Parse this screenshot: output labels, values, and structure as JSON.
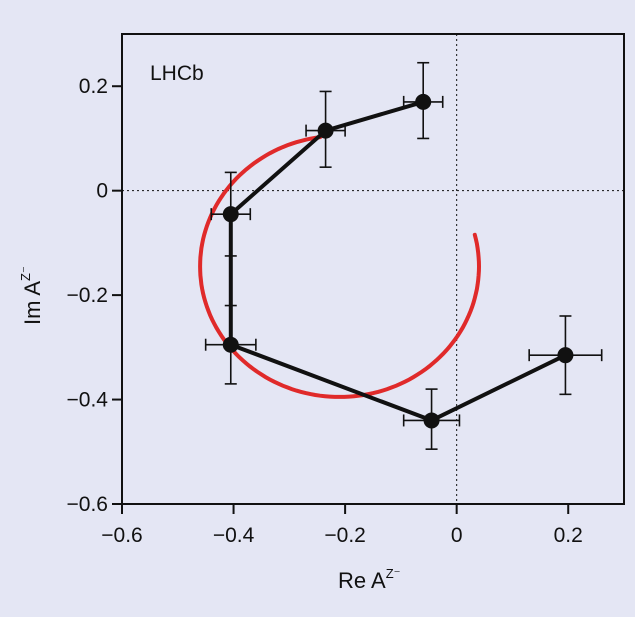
{
  "chart_data": {
    "type": "scatter",
    "annotation": "LHCb",
    "xlabel": {
      "base": "Re A",
      "superscript": "Z⁻"
    },
    "ylabel": {
      "base": "Im A",
      "superscript": "Z⁻"
    },
    "xlim": [
      -0.6,
      0.3
    ],
    "ylim": [
      -0.6,
      0.3
    ],
    "x_ticks": [
      -0.6,
      -0.4,
      -0.2,
      0,
      0.2
    ],
    "x_tick_labels": [
      "−0.6",
      "−0.4",
      "−0.2",
      "0",
      "0.2"
    ],
    "y_ticks": [
      -0.6,
      -0.4,
      -0.2,
      0,
      0.2
    ],
    "y_tick_labels": [
      "−0.6",
      "−0.4",
      "−0.2",
      "0",
      "0.2"
    ],
    "reference_lines": {
      "x": 0,
      "y": 0,
      "style": "dotted"
    },
    "grid": false,
    "series": [
      {
        "type": "line-with-errorbars",
        "color": "#111111",
        "points": [
          {
            "x": -0.06,
            "y": 0.17,
            "xerr": 0.035,
            "yerr_up": 0.075,
            "yerr_down": 0.07
          },
          {
            "x": -0.235,
            "y": 0.115,
            "xerr": 0.035,
            "yerr_up": 0.075,
            "yerr_down": 0.07
          },
          {
            "x": -0.405,
            "y": -0.045,
            "xerr": 0.035,
            "yerr_up": 0.08,
            "yerr_down": 0.08
          },
          {
            "x": -0.405,
            "y": -0.295,
            "xerr": 0.045,
            "yerr_up": 0.075,
            "yerr_down": 0.075
          },
          {
            "x": -0.045,
            "y": -0.44,
            "xerr": 0.05,
            "yerr_up": 0.06,
            "yerr_down": 0.055
          },
          {
            "x": 0.195,
            "y": -0.315,
            "xerr": 0.065,
            "yerr_up": 0.075,
            "yerr_down": 0.075
          }
        ]
      },
      {
        "type": "curve",
        "color": "#e02a2a",
        "description_shape": "breit-wigner circle",
        "center": [
          -0.21,
          -0.145
        ],
        "radius": 0.25,
        "start_angle_deg": 98,
        "end_angle_deg": 375
      }
    ]
  }
}
